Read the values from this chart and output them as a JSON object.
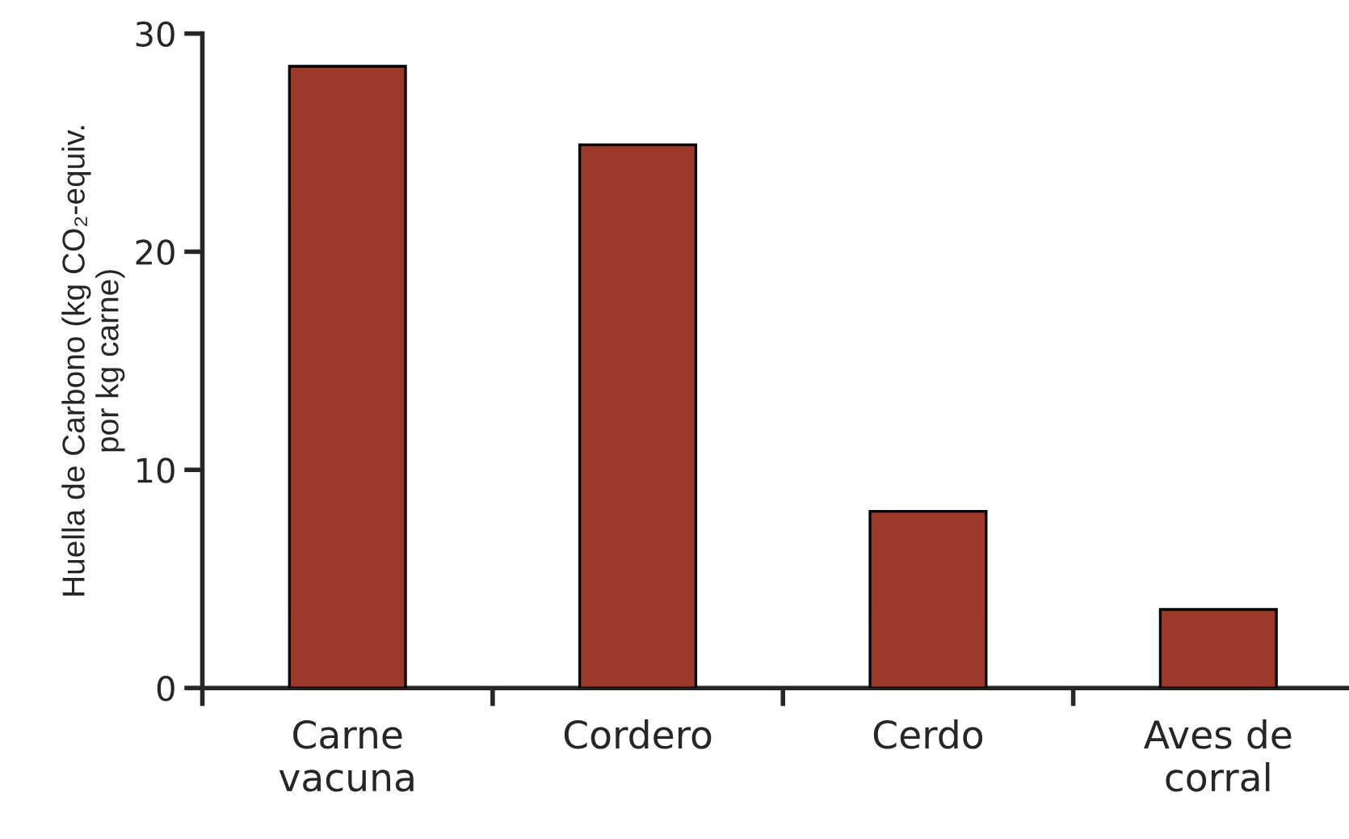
{
  "chart_data": {
    "type": "bar",
    "ylabel": "Huella de Carbono (kg CO₂-equiv.\npor kg carne)",
    "categories": [
      "Carne\nvacuna",
      "Cordero",
      "Cerdo",
      "Aves de\ncorral"
    ],
    "values": [
      28.5,
      24.9,
      8.1,
      3.6
    ],
    "color": "#9b3a28",
    "ylim": [
      0,
      30
    ],
    "yticks": [
      0,
      10,
      20,
      30
    ],
    "grid": false
  }
}
